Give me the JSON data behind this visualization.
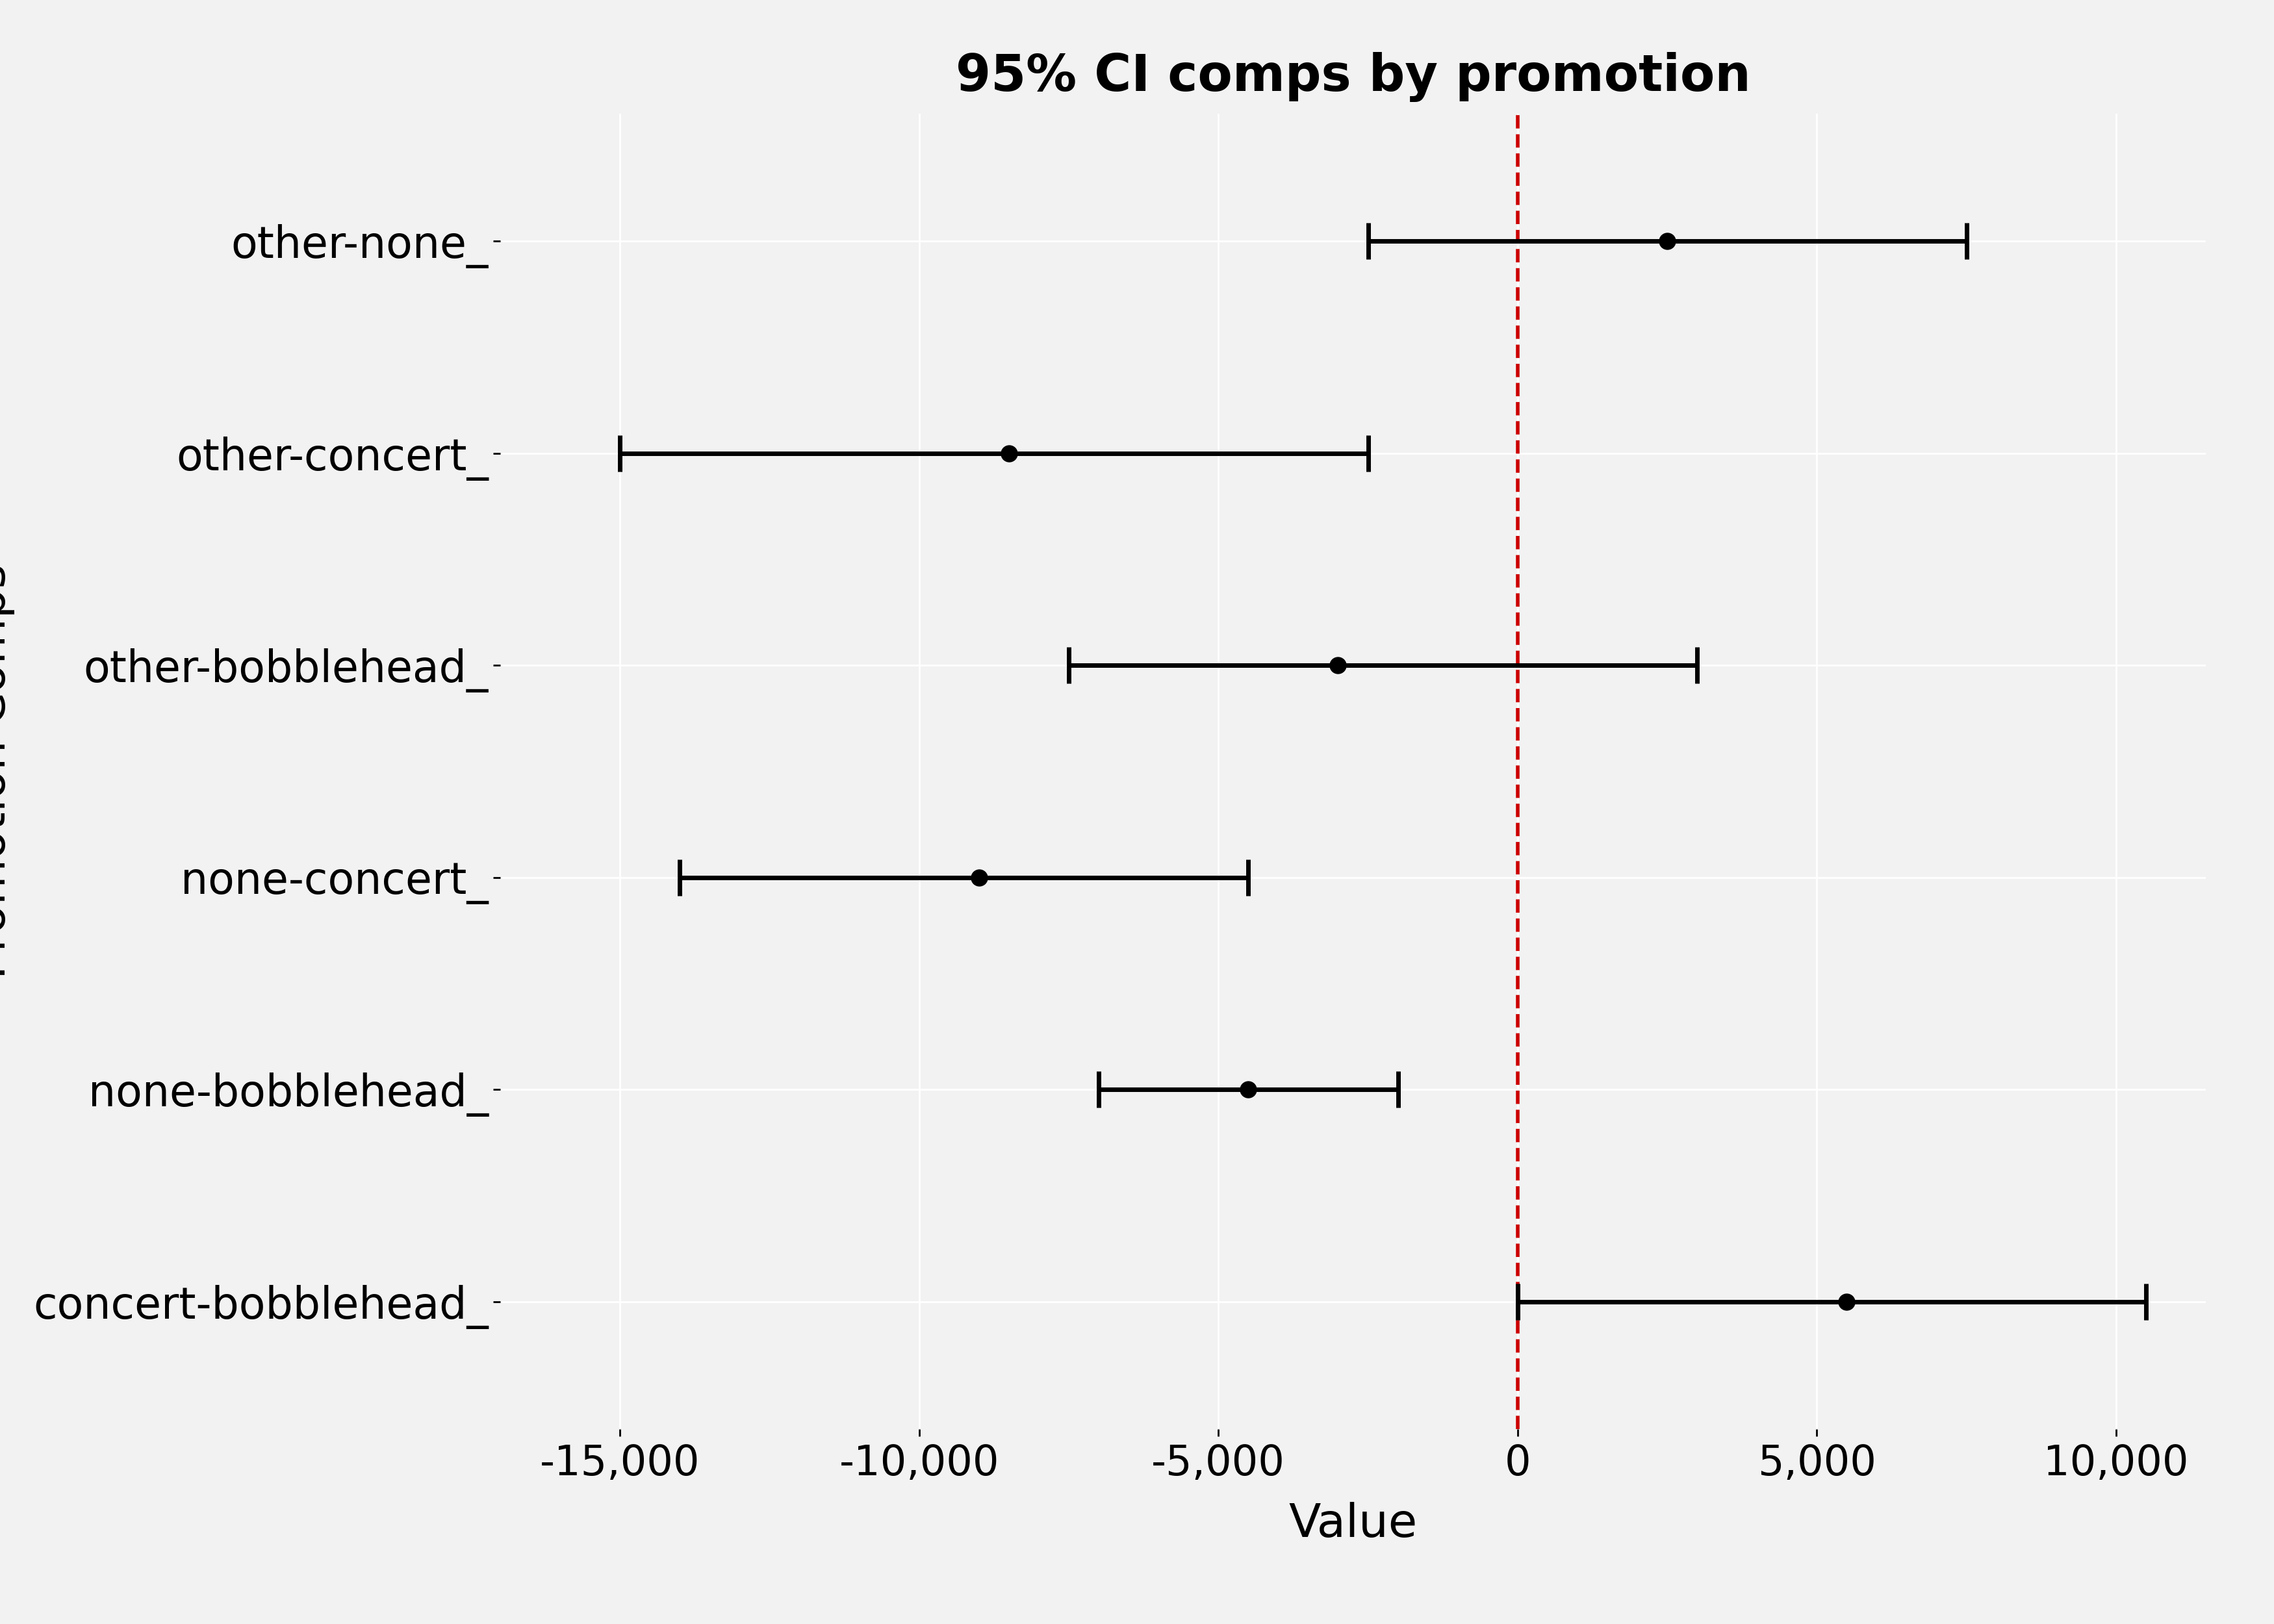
{
  "title": "95% CI comps by promotion",
  "xlabel": "Value",
  "ylabel": "Promotion Comps",
  "categories": [
    "other-none",
    "other-concert",
    "other-bobblehead",
    "none-concert",
    "none-bobblehead",
    "concert-bobblehead"
  ],
  "means": [
    2500,
    -8500,
    -3000,
    -9000,
    -4500,
    5500
  ],
  "lower": [
    -2500,
    -15000,
    -7500,
    -14000,
    -7000,
    0
  ],
  "upper": [
    7500,
    -2500,
    3000,
    -4500,
    -2000,
    10500
  ],
  "xlim": [
    -17000,
    11500
  ],
  "xticks": [
    -15000,
    -10000,
    -5000,
    0,
    5000,
    10000
  ],
  "xticklabels": [
    "-15,000",
    "-10,000",
    "-5,000",
    "0",
    "5,000",
    "10,000"
  ],
  "vline_x": 0,
  "vline_color": "#cc0000",
  "line_color": "#000000",
  "bg_color": "#f2f2f2",
  "plot_bg_color": "#f2f2f2",
  "grid_color": "#ffffff",
  "title_fontsize": 56,
  "label_fontsize": 52,
  "tick_fontsize": 46,
  "ytick_fontsize": 48,
  "marker_size": 18,
  "line_width": 5.0,
  "cap_size": 20,
  "cap_thick": 5.0
}
